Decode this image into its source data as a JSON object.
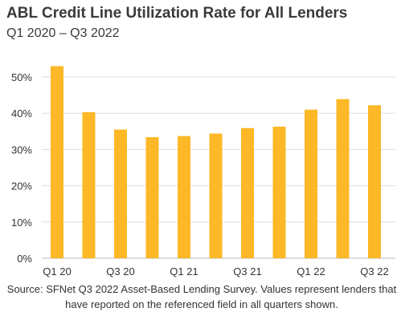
{
  "chart_data": {
    "type": "bar",
    "title": "ABL Credit Line Utilization Rate for All Lenders",
    "subtitle": "Q1 2020 – Q3 2022",
    "categories": [
      "Q1 20",
      "Q2 20",
      "Q3 20",
      "Q4 20",
      "Q1 21",
      "Q2 21",
      "Q3 21",
      "Q4 21",
      "Q1 22",
      "Q2 22",
      "Q3 22"
    ],
    "category_labels_shown": [
      "Q1 20",
      "",
      "Q3 20",
      "",
      "Q1 21",
      "",
      "Q3 21",
      "",
      "Q1 22",
      "",
      "Q3 22"
    ],
    "values": [
      53,
      40.3,
      35.5,
      33.4,
      33.7,
      34.4,
      35.9,
      36.3,
      41,
      43.9,
      42.2
    ],
    "value_unit": "%",
    "ylim": [
      0,
      50
    ],
    "yticks": [
      0,
      10,
      20,
      30,
      40,
      50
    ],
    "ytick_labels": [
      "0%",
      "10%",
      "20%",
      "30%",
      "40%",
      "50%"
    ],
    "xlabel": "",
    "ylabel": "",
    "bar_color": "#FDB827",
    "grid": true,
    "grid_color": "#dddddd",
    "legend": false,
    "footnote": "Source: SFNet Q3 2022 Asset-Based Lending Survey. Values represent lenders that have reported on the referenced field in all quarters shown."
  }
}
